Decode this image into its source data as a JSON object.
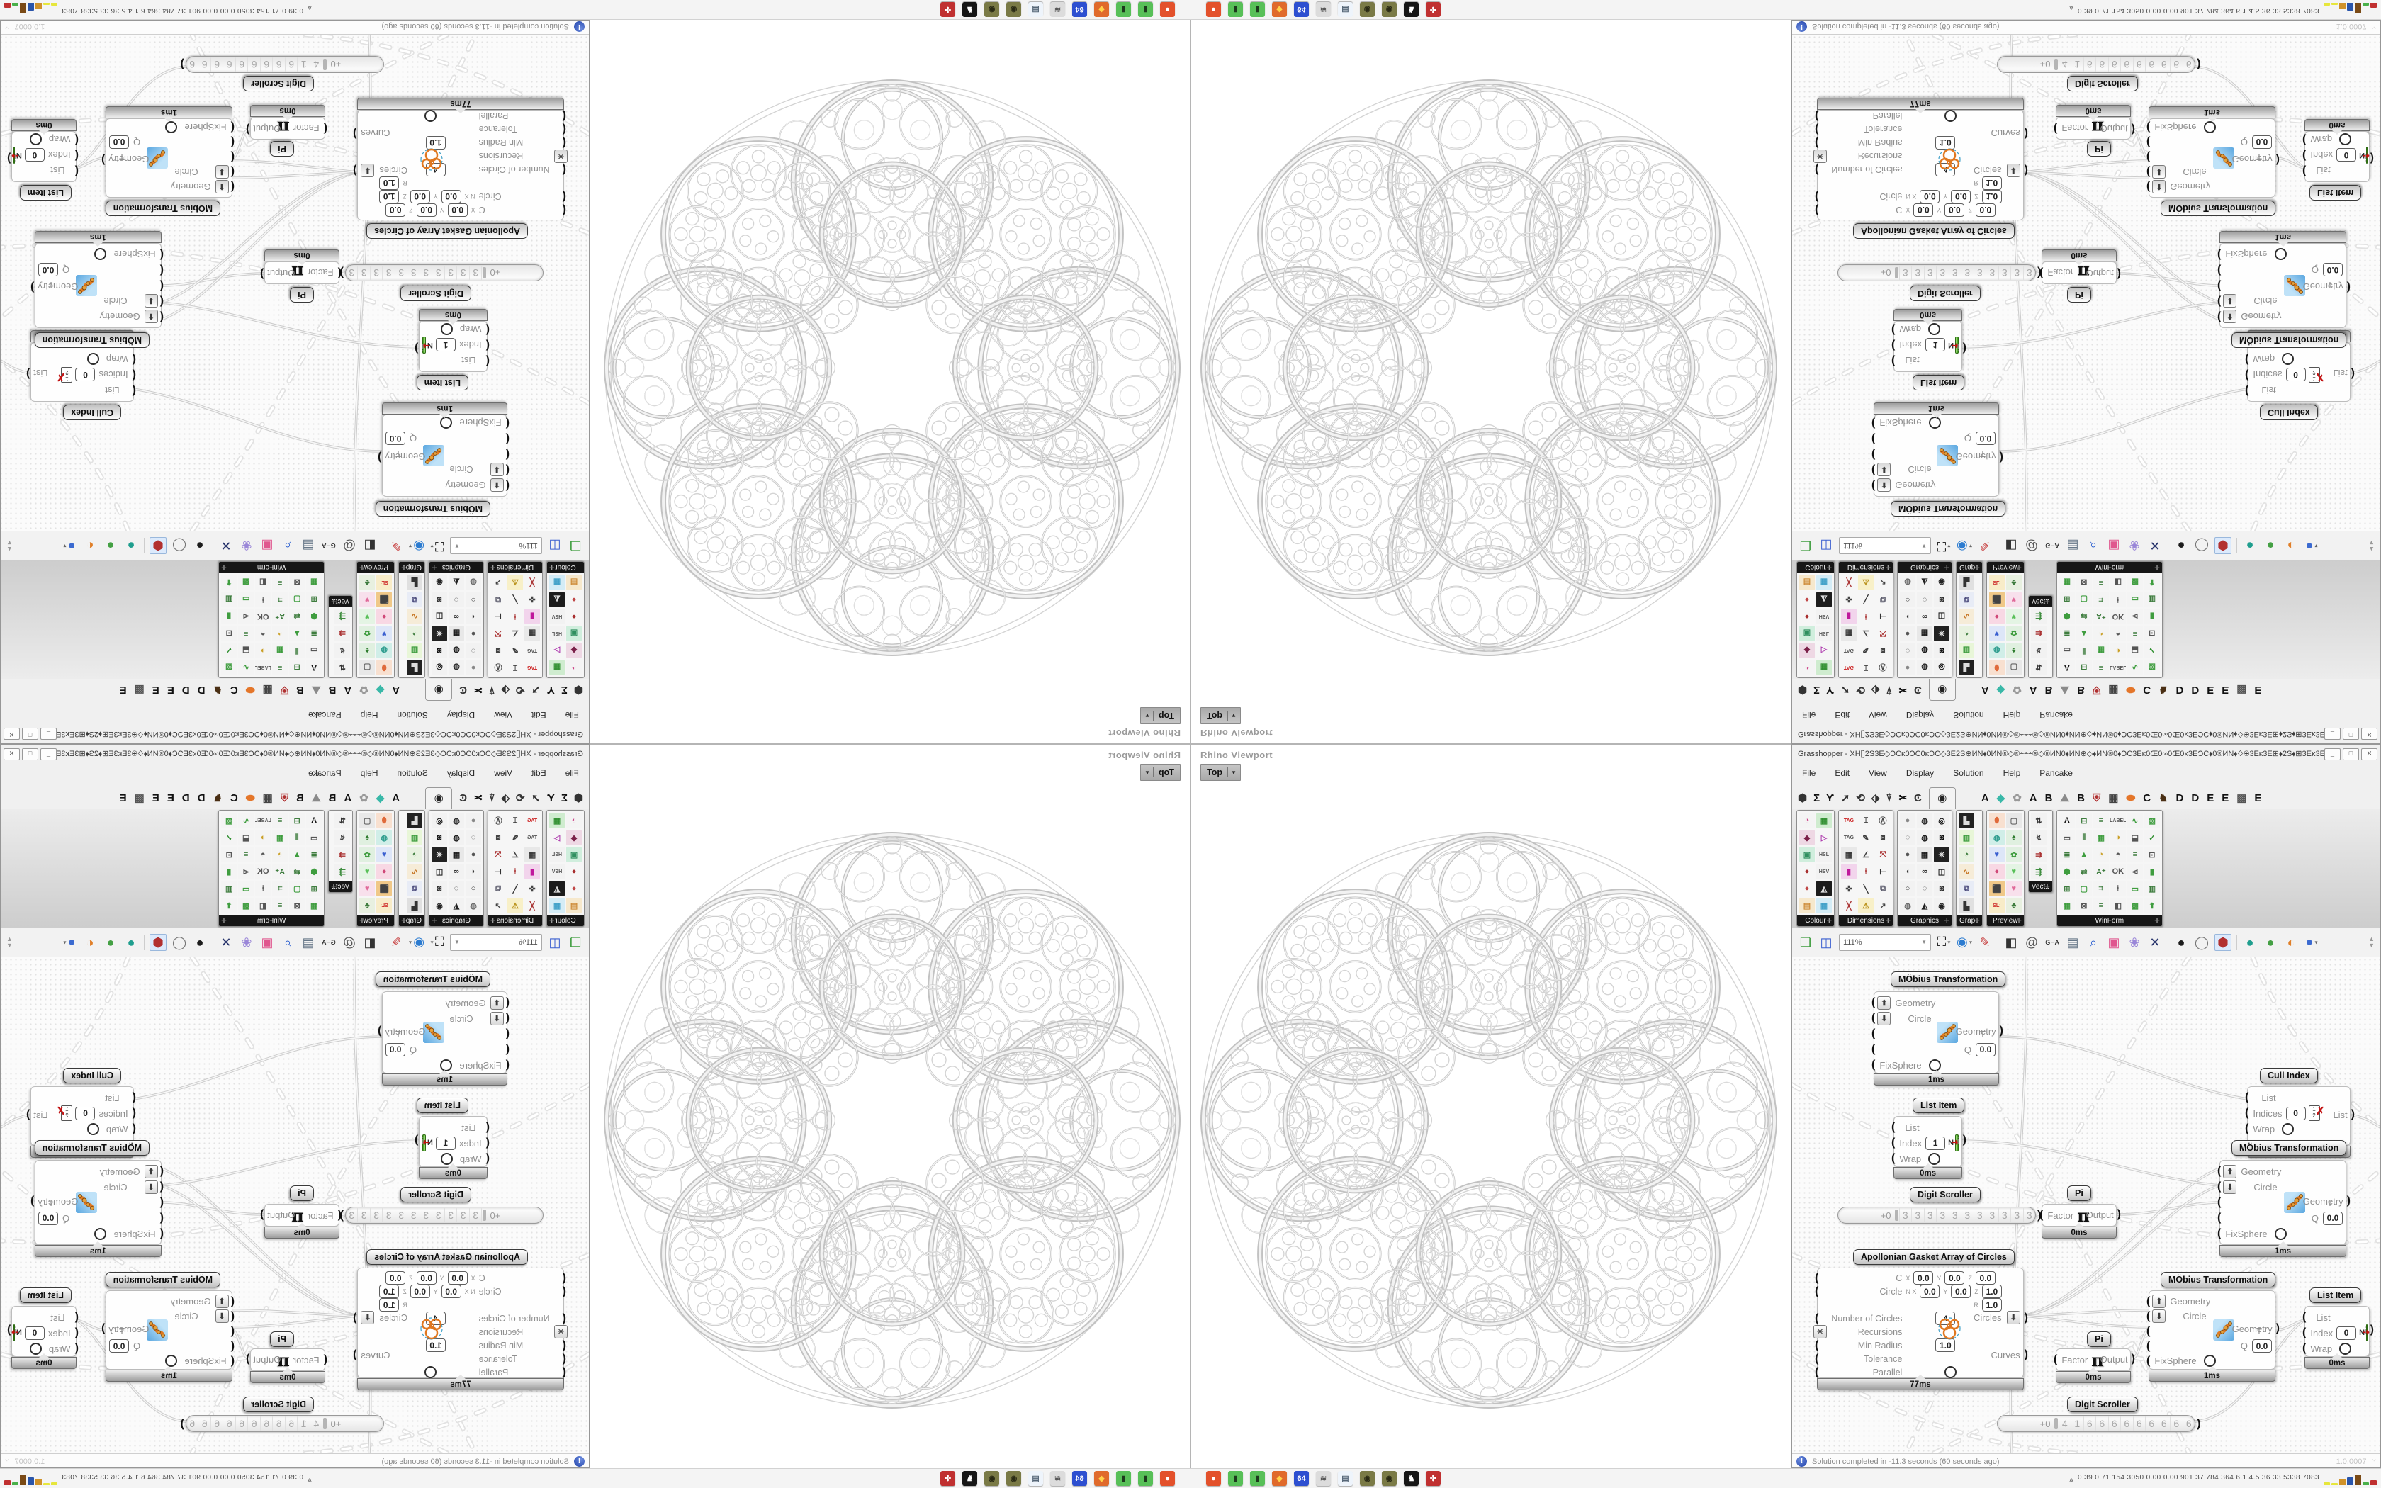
{
  "viewport": {
    "label": "Rhino Viewport",
    "projection": "Top"
  },
  "gh": {
    "title": "Grasshopper - XH[]2S3E◇ƆCκ0ƆC0κƆC◇3E2S⊕ИN⬧0ИN®◇®÷÷÷®◇®ИN0⬧ИN⊕◇⬧ИN®0⬧ƆC3Eκ0Œ0∞0Œ0κ3EƆC⬧0®ИN⬧◇⊕3Eκ3E⊞⬧2S⬧⊞3Eκ3E⊕◇⬧κŒ3E⊞⬧⬧ƆC...",
    "window_buttons": [
      "_",
      "□",
      "✕"
    ],
    "menu": [
      "File",
      "Edit",
      "View",
      "Display",
      "Solution",
      "Help",
      "Pancake"
    ],
    "tabs_left": [
      {
        "g": "⬢",
        "f": "#333"
      },
      {
        "g": "Σ",
        "f": "#111"
      },
      {
        "g": "Ƴ",
        "f": "#111"
      },
      {
        "g": "➚",
        "f": "#333"
      },
      {
        "g": "⟲",
        "f": "#333"
      },
      {
        "g": "⬗",
        "f": "#333"
      },
      {
        "g": "⍒",
        "f": "#333"
      },
      {
        "g": "✂",
        "f": "#111"
      },
      {
        "g": "Ͼ",
        "f": "#333"
      }
    ],
    "tab_selected_glyph": "◉",
    "tabs_right": [
      {
        "g": "A",
        "f": "#111"
      },
      {
        "g": "◆",
        "f": "#39b8a8"
      },
      {
        "g": "✿",
        "f": "#999"
      },
      {
        "g": "A",
        "f": "#111"
      },
      {
        "g": "B",
        "f": "#111"
      },
      {
        "g": "⛰",
        "f": "#8a8a8a"
      },
      {
        "g": "B",
        "f": "#111"
      },
      {
        "g": "⛨",
        "f": "#b03030"
      },
      {
        "g": "▦",
        "f": "#444"
      },
      {
        "g": "⬬",
        "f": "#e4762a"
      },
      {
        "g": "C",
        "f": "#111"
      },
      {
        "g": "♞",
        "f": "#4a2f14"
      },
      {
        "g": "D",
        "f": "#111"
      },
      {
        "g": "D",
        "f": "#111"
      },
      {
        "g": "E",
        "f": "#111"
      },
      {
        "g": "E",
        "f": "#111"
      },
      {
        "g": "▩",
        "f": "#555"
      },
      {
        "g": "E",
        "f": "#111"
      }
    ],
    "zoom": "111%",
    "toolbar": [
      {
        "t": "btn",
        "g": "❏",
        "f": "#3f9d3f"
      },
      {
        "t": "btn",
        "g": "◫",
        "f": "#3a5fd0"
      },
      {
        "t": "zoom"
      },
      {
        "t": "btn",
        "g": "⛶",
        "f": "#111",
        "caret": true
      },
      {
        "t": "btn",
        "g": "◉",
        "f": "#2b7bd0",
        "caret": true
      },
      {
        "t": "btn",
        "g": "✎",
        "f": "#c43333"
      },
      {
        "t": "sep"
      },
      {
        "t": "btn",
        "g": "◧",
        "f": "#333"
      },
      {
        "t": "btn",
        "g": "@",
        "f": "#555"
      },
      {
        "t": "btn",
        "g": "GHA",
        "f": "#0a0a0a",
        "small": true
      },
      {
        "t": "btn",
        "g": "▤",
        "f": "#667788"
      },
      {
        "t": "btn",
        "g": "⌕",
        "f": "#2b5fd0"
      },
      {
        "t": "btn",
        "g": "▣",
        "f": "#e0568e"
      },
      {
        "t": "btn",
        "g": "❀",
        "f": "#9a86d8"
      },
      {
        "t": "btn",
        "g": "✕",
        "f": "#27336b"
      },
      {
        "t": "sep"
      },
      {
        "t": "btn",
        "g": "●",
        "f": "#1c1c1c"
      },
      {
        "t": "btn",
        "g": "◯",
        "f": "#777"
      },
      {
        "t": "btn",
        "g": "⬢",
        "f": "#b23030",
        "pressed": true
      },
      {
        "t": "sep"
      },
      {
        "t": "btn",
        "g": "●",
        "f": "#1f9e8e"
      },
      {
        "t": "btn",
        "g": "●",
        "f": "#44a044"
      },
      {
        "t": "btn",
        "g": "◐",
        "f": "#e07f28"
      },
      {
        "t": "btn",
        "g": "●",
        "f": "#3b6ad0",
        "caret": true
      }
    ],
    "panels": [
      {
        "label": "Colour",
        "cols": 2,
        "icons": [
          {
            "g": "◔",
            "f": "#cc4488",
            "b": "#f4f4f4"
          },
          {
            "g": "▦",
            "f": "#2f8f2f",
            "b": "#cfeccf"
          },
          {
            "g": "◆",
            "f": "#7a2048",
            "b": "#eed8e4"
          },
          {
            "g": "▷",
            "f": "#b040b0",
            "b": "#f6f6f6"
          },
          {
            "g": "▣",
            "f": "#2f8f5f",
            "b": "#d0eedd"
          },
          {
            "g": "HSL",
            "f": "#555",
            "b": "#f2f2f2"
          },
          {
            "g": "●",
            "f": "#a83030",
            "b": "#f6f6f6"
          },
          {
            "g": "HSV",
            "f": "#555",
            "b": "#f2f2f2"
          },
          {
            "g": "●",
            "f": "#c04848",
            "b": "#f6f6f6"
          },
          {
            "g": "◭",
            "f": "#ddd",
            "b": "#1c1c1c"
          },
          {
            "g": "▤",
            "f": "#cc8833",
            "b": "#f6e8cc"
          },
          {
            "g": "▦",
            "f": "#3fa0c8",
            "b": "#d4ecf6"
          }
        ]
      },
      {
        "label": "Dimensions",
        "cols": 3,
        "icons": [
          {
            "g": "TAG",
            "f": "#c22",
            "b": "#f6f6f6"
          },
          {
            "g": "⌶",
            "f": "#333",
            "b": "#f6f6f6"
          },
          {
            "g": "Ⓐ",
            "f": "#444",
            "b": "#f6f6f6"
          },
          {
            "g": "TAG",
            "f": "#555",
            "b": "#f6f6f6"
          },
          {
            "g": "✎",
            "f": "#333",
            "b": "#f6f6f6"
          },
          {
            "g": "⧈",
            "f": "#444",
            "b": "#f6f6f6"
          },
          {
            "g": "▦",
            "f": "#333",
            "b": "#e8e8e8"
          },
          {
            "g": "∠",
            "f": "#444",
            "b": "#f6f6f6"
          },
          {
            "g": "⤧",
            "f": "#a33",
            "b": "#f6f6f6"
          },
          {
            "g": "▮",
            "f": "#c0189c",
            "b": "#f2d4ec"
          },
          {
            "g": "⍿",
            "f": "#a33",
            "b": "#f6f6f6"
          },
          {
            "g": "⊢",
            "f": "#333",
            "b": "#f6f6f6"
          },
          {
            "g": "✜",
            "f": "#444",
            "b": "#f6f6f6"
          },
          {
            "g": "╲",
            "f": "#333",
            "b": "#f6f6f6"
          },
          {
            "g": "⧉",
            "f": "#556",
            "b": "#f6f6f6"
          },
          {
            "g": "╳",
            "f": "#a33",
            "b": "#f6f6f6"
          },
          {
            "g": "⚠",
            "f": "#b89018",
            "b": "#f8f0c8"
          },
          {
            "g": "↗",
            "f": "#444",
            "b": "#f6f6f6"
          }
        ]
      },
      {
        "label": "Graphics",
        "cols": 3,
        "icons": [
          {
            "g": "●",
            "f": "#888",
            "b": "#f2f2f2"
          },
          {
            "g": "◍",
            "f": "#222",
            "b": "#f2f2f2"
          },
          {
            "g": "◎",
            "f": "#111",
            "b": "#f2f2f2"
          },
          {
            "g": "◌",
            "f": "#444",
            "b": "#f2f2f2"
          },
          {
            "g": "◍",
            "f": "#111",
            "b": "#f2f2f2"
          },
          {
            "g": "◙",
            "f": "#111",
            "b": "#f2f2f2"
          },
          {
            "g": "●",
            "f": "#555",
            "b": "#f2f2f2"
          },
          {
            "g": "▦",
            "f": "#111",
            "b": "#e8e8e8"
          },
          {
            "g": "✳",
            "f": "#eee",
            "b": "#222"
          },
          {
            "g": "◖",
            "f": "#333",
            "b": "#f2f2f2"
          },
          {
            "g": "∞",
            "f": "#222",
            "b": "#f2f2f2"
          },
          {
            "g": "◫",
            "f": "#222",
            "b": "#f2f2f2"
          },
          {
            "g": "○",
            "f": "#333",
            "b": "#f2f2f2"
          },
          {
            "g": "◌",
            "f": "#222",
            "b": "#f2f2f2"
          },
          {
            "g": "◙",
            "f": "#333",
            "b": "#f2f2f2"
          },
          {
            "g": "◍",
            "f": "#666",
            "b": "#f2f2f2"
          },
          {
            "g": "◭",
            "f": "#222",
            "b": "#f2f2f2"
          },
          {
            "g": "◉",
            "f": "#222",
            "b": "#f2f2f2"
          }
        ]
      },
      {
        "label": "Grap..",
        "cols": 1,
        "icons": [
          {
            "g": "▙",
            "f": "#ddd",
            "b": "#222"
          },
          {
            "g": "▥",
            "f": "#3f9d3f",
            "b": "#e8f6d8"
          },
          {
            "g": "◔",
            "f": "#3f7d3f",
            "b": "#e8f2e0"
          },
          {
            "g": "∿",
            "f": "#c87828",
            "b": "#f6ecd8"
          },
          {
            "g": "⧉",
            "f": "#447",
            "b": "#e8ecf6"
          },
          {
            "g": "▙",
            "f": "#333",
            "b": "#e0e0e0"
          }
        ]
      },
      {
        "label": "Preview",
        "cols": 2,
        "icons": [
          {
            "g": "⬮",
            "f": "#e06a3a",
            "b": "#f8e0d0"
          },
          {
            "g": "▢",
            "f": "#666",
            "b": "#e8e8e8"
          },
          {
            "g": "◍",
            "f": "#2f9d8f",
            "b": "#d0eee8"
          },
          {
            "g": "♠",
            "f": "#2f7d2f",
            "b": "#e0f0e0"
          },
          {
            "g": "♥",
            "f": "#3a5fd0",
            "b": "#dde6f8"
          },
          {
            "g": "✿",
            "f": "#3f9d3f",
            "b": "#e0f0e0"
          },
          {
            "g": "●",
            "f": "#d04878",
            "b": "#f8d8e4"
          },
          {
            "g": "♥",
            "f": "#58c058",
            "b": "#e4f4e4"
          },
          {
            "g": "⬛",
            "f": "#222",
            "b": "#f0c888"
          },
          {
            "g": "♥",
            "f": "#e06a9a",
            "b": "#f8e0ec"
          },
          {
            "g": "SL;",
            "f": "#c22",
            "b": "#f8ecc8"
          },
          {
            "g": "♣",
            "f": "#3f7d3f",
            "b": "#e8f0e0"
          }
        ]
      },
      {
        "label": "Vect..",
        "cols": 1,
        "icons": [
          {
            "g": "⇅",
            "f": "#333",
            "b": "#f2f2f2"
          },
          {
            "g": "↯",
            "f": "#444",
            "b": "#f2f2f2"
          },
          {
            "g": "⇉",
            "f": "#a33",
            "b": "#f2f2f2"
          },
          {
            "g": "⇶",
            "f": "#3f8d3f",
            "b": "#f2f2f2"
          }
        ]
      },
      {
        "label": "WinForm",
        "cols": 6,
        "icons": [
          {
            "g": "A",
            "f": "#111",
            "b": "#f4f4f4"
          },
          {
            "g": "⊟",
            "f": "#3f7d3f",
            "b": "#f4f4f4"
          },
          {
            "g": "≡",
            "f": "#3f7d3f",
            "b": "#f4f4f4"
          },
          {
            "g": "LABEL",
            "f": "#555",
            "b": "#f4f4f4"
          },
          {
            "g": "∿",
            "f": "#3f9d3f",
            "b": "#f4f4f4"
          },
          {
            "g": "▨",
            "f": "#3f9d3f",
            "b": "#f4f4f4"
          },
          {
            "g": "▭",
            "f": "#555",
            "b": "#f4f4f4"
          },
          {
            "g": "⫴",
            "f": "#3f7d3f",
            "b": "#f4f4f4"
          },
          {
            "g": "▦",
            "f": "#3f9d3f",
            "b": "#f4f4f4"
          },
          {
            "g": "◑",
            "f": "#caa028",
            "b": "#f4f4f4"
          },
          {
            "g": "⬓",
            "f": "#555",
            "b": "#f4f4f4"
          },
          {
            "g": "✓",
            "f": "#2f8f2f",
            "b": "#f4f4f4"
          },
          {
            "g": "≣",
            "f": "#3f7d3f",
            "b": "#f4f4f4"
          },
          {
            "g": "▲",
            "f": "#3f9d3f",
            "b": "#f4f4f4"
          },
          {
            "g": "◔",
            "f": "#caa028",
            "b": "#f4f4f4"
          },
          {
            "g": "◓",
            "f": "#555",
            "b": "#f4f4f4"
          },
          {
            "g": "≡",
            "f": "#3f7d3f",
            "b": "#f4f4f4"
          },
          {
            "g": "⊡",
            "f": "#555",
            "b": "#f4f4f4"
          },
          {
            "g": "⬢",
            "f": "#3f9d3f",
            "b": "#f4f4f4"
          },
          {
            "g": "⇄",
            "f": "#3f7d3f",
            "b": "#f4f4f4"
          },
          {
            "g": "A⁺",
            "f": "#3f7d3f",
            "b": "#f4f4f4"
          },
          {
            "g": "OK",
            "f": "#555",
            "b": "#f4f4f4"
          },
          {
            "g": "⊲",
            "f": "#555",
            "b": "#f4f4f4"
          },
          {
            "g": "▮",
            "f": "#3f9d3f",
            "b": "#f4f4f4"
          },
          {
            "g": "⊞",
            "f": "#3f7d3f",
            "b": "#f4f4f4"
          },
          {
            "g": "▢",
            "f": "#3f9d3f",
            "b": "#f4f4f4"
          },
          {
            "g": "⌗",
            "f": "#3f7d3f",
            "b": "#f4f4f4"
          },
          {
            "g": "⍿",
            "f": "#555",
            "b": "#f4f4f4"
          },
          {
            "g": "▭",
            "f": "#3f9d3f",
            "b": "#f4f4f4"
          },
          {
            "g": "▥",
            "f": "#3f7d3f",
            "b": "#f4f4f4"
          },
          {
            "g": "▦",
            "f": "#3f9d3f",
            "b": "#f4f4f4"
          },
          {
            "g": "⊠",
            "f": "#555",
            "b": "#f4f4f4"
          },
          {
            "g": "≡",
            "f": "#3f7d3f",
            "b": "#f4f4f4"
          },
          {
            "g": "◧",
            "f": "#555",
            "b": "#f4f4f4"
          },
          {
            "g": "▩",
            "f": "#3f9d3f",
            "b": "#f4f4f4"
          },
          {
            "g": "⬆",
            "f": "#3f9d3f",
            "b": "#f4f4f4"
          }
        ]
      }
    ],
    "status": "Solution completed in -11.3 seconds (60 seconds ago)",
    "version": "1.0.0007"
  },
  "nodes": {
    "mobius": {
      "tag": "MÖbius Transformation",
      "inputs": [
        "Geometry",
        "Circle",
        "T",
        "Q",
        "FixSphere"
      ],
      "q_value": "0.0",
      "output": "Geometry",
      "time": "1ms"
    },
    "list_item": {
      "tag": "List Item",
      "inputs": [
        "List",
        "Index",
        "Wrap"
      ],
      "n_label": "N",
      "output": "i",
      "time": "0ms",
      "index_a": "1",
      "index_b": "0"
    },
    "cull": {
      "tag": "Cull Index",
      "inputs": [
        "List",
        "Indices",
        "Wrap"
      ],
      "index": "0",
      "output": "List",
      "time": "0ms"
    },
    "pi": {
      "tag": "Pi",
      "input": "Factor",
      "symbol": "π",
      "output": "Output",
      "time": "0ms"
    },
    "digit_scroller": {
      "tag": "Digit Scroller",
      "prefix": "+0",
      "digits_a": [
        "3",
        "3",
        "3",
        "3",
        "3",
        "3",
        "3",
        "3",
        "3",
        "3",
        "3"
      ],
      "digits_b": [
        "4",
        "1",
        "6",
        "6",
        "6",
        "6",
        "6",
        "6",
        "6",
        "6",
        "6"
      ]
    },
    "apollonian": {
      "tag": "Apollonian Gasket Array of Circles",
      "time": "77ms",
      "r1": {
        "label": "C",
        "k1": "X",
        "v1": "0.0",
        "k2": "Y",
        "v2": "0.0",
        "k3": "Z",
        "v3": "0.0"
      },
      "r2": {
        "label": "Circle",
        "k1": "N X",
        "v1": "0.0",
        "k2": "Y",
        "v2": "0.0",
        "k3": "Z",
        "v3": "1.0"
      },
      "r3": {
        "k": "R",
        "v": "1.0"
      },
      "r4": {
        "label": "Number of Circles",
        "v": "4"
      },
      "r5": {
        "label": "Recursions"
      },
      "r6": {
        "label": "Min Radius",
        "v": "1.0"
      },
      "r7": {
        "label": "Tolerance"
      },
      "r8": {
        "label": "Parallel"
      },
      "out1": "Circles",
      "out2": "Curves"
    }
  },
  "taskbar": {
    "icons": [
      {
        "g": "●",
        "f": "#fff",
        "b": "#e3512b"
      },
      {
        "g": "▮",
        "f": "#1d3a1d",
        "b": "#58c058"
      },
      {
        "g": "▮",
        "f": "#1d3a1d",
        "b": "#58c058"
      },
      {
        "g": "◆",
        "f": "#ffd24a",
        "b": "#e06a2b"
      },
      {
        "g": "64",
        "f": "#fff",
        "b": "#2d4fd0"
      },
      {
        "g": "≋",
        "f": "#555",
        "b": "#dcdcdc"
      },
      {
        "g": "▤",
        "f": "#567",
        "b": "#eef4fb"
      },
      {
        "g": "◉",
        "f": "#2a2a14",
        "b": "#7a7a46"
      },
      {
        "g": "◉",
        "f": "#2a2a14",
        "b": "#7a7a46"
      },
      {
        "g": "♞",
        "f": "#fff",
        "b": "#161616"
      },
      {
        "g": "✣",
        "f": "#fff",
        "b": "#c03030"
      }
    ],
    "stats_glyph": "⩓",
    "stats": "0.39 0.71 154 3050 0.00 0.00 901  37  784  364  6.1  4.5  36  33  5338 7083",
    "bars": [
      {
        "c": "#e6e63c",
        "h": 4
      },
      {
        "c": "#e6e63c",
        "h": 3
      },
      {
        "c": "#d0922a",
        "h": 9
      },
      {
        "c": "#2a55aa",
        "h": 11
      },
      {
        "c": "#7a4a16",
        "h": 15
      },
      {
        "c": "#4ab04a",
        "h": 4
      },
      {
        "c": "#c03030",
        "h": 7
      }
    ]
  }
}
